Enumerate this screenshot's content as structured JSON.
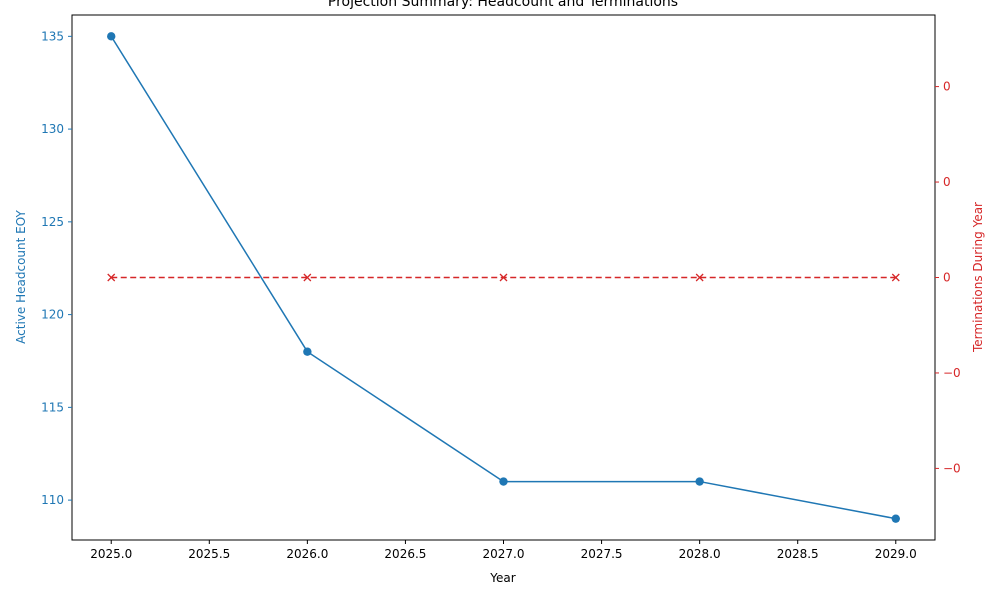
{
  "chart_data": {
    "type": "line",
    "title": "Projection Summary: Headcount and Terminations",
    "xlabel": "Year",
    "ylabel_left": "Active Headcount EOY",
    "ylabel_right": "Terminations During Year",
    "x": [
      2025,
      2026,
      2027,
      2028,
      2029
    ],
    "x_ticks": [
      "2025.0",
      "2025.5",
      "2026.0",
      "2026.5",
      "2027.0",
      "2027.5",
      "2028.0",
      "2028.5",
      "2029.0"
    ],
    "x_tick_values": [
      2025.0,
      2025.5,
      2026.0,
      2026.5,
      2027.0,
      2027.5,
      2028.0,
      2028.5,
      2029.0
    ],
    "xlim": [
      2024.8,
      2029.2
    ],
    "left_axis": {
      "ylim": [
        107.85,
        136.15
      ],
      "ticks": [
        "110",
        "115",
        "120",
        "125",
        "130",
        "135"
      ],
      "tick_values": [
        110,
        115,
        120,
        125,
        130,
        135
      ]
    },
    "right_axis": {
      "ylim": [
        -0.055,
        0.055
      ],
      "ticks": [
        "−0",
        "−0",
        "0",
        "0",
        "0"
      ],
      "tick_values": [
        -0.04,
        -0.02,
        0.0,
        0.02,
        0.04
      ]
    },
    "series": [
      {
        "axis": "left",
        "values": [
          135,
          118,
          111,
          111,
          109
        ],
        "color": "#1f77b4",
        "marker": "circle",
        "linestyle": "solid"
      },
      {
        "axis": "right",
        "values": [
          0,
          0,
          0,
          0,
          0
        ],
        "color": "#d62728",
        "marker": "x",
        "linestyle": "dashed"
      }
    ],
    "grid": false,
    "legend": "none"
  }
}
